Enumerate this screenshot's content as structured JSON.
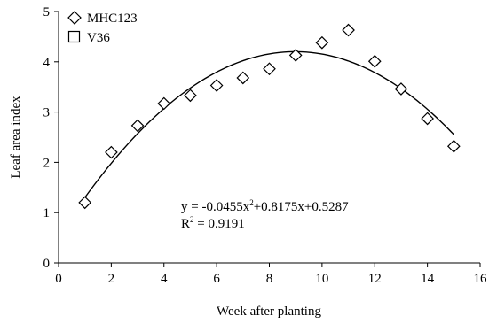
{
  "chart_data": {
    "type": "scatter",
    "xlabel": "Week after planting",
    "ylabel": "Leaf area index",
    "xlim": [
      0,
      16
    ],
    "ylim": [
      0,
      5
    ],
    "x_ticks": [
      "0",
      "2",
      "4",
      "6",
      "8",
      "10",
      "12",
      "14",
      "16"
    ],
    "y_ticks": [
      "0",
      "1",
      "2",
      "3",
      "4",
      "5"
    ],
    "grid": false,
    "legend_position": "top-left",
    "series": [
      {
        "name": "MHC123",
        "marker": "diamond",
        "x": [
          1,
          2,
          3,
          4,
          5,
          6,
          7,
          8,
          9,
          10,
          11,
          12,
          13,
          14,
          15
        ],
        "y": [
          1.2,
          2.2,
          2.73,
          3.17,
          3.33,
          3.53,
          3.68,
          3.86,
          4.13,
          4.38,
          4.63,
          4.01,
          3.46,
          2.87,
          2.32
        ]
      },
      {
        "name": "V36",
        "marker": "square",
        "x": [],
        "y": []
      }
    ],
    "trendline": {
      "type": "polynomial",
      "coefficients": {
        "a": -0.0455,
        "b": 0.8175,
        "c": 0.5287
      },
      "x_range": [
        1,
        15
      ]
    },
    "annotations": {
      "equation_prefix": "y = -0.0455x",
      "equation_exp": "2",
      "equation_suffix": "+0.8175x+0.5287",
      "r2_prefix": "R",
      "r2_exp": "2",
      "r2_suffix": " = 0.9191"
    }
  }
}
